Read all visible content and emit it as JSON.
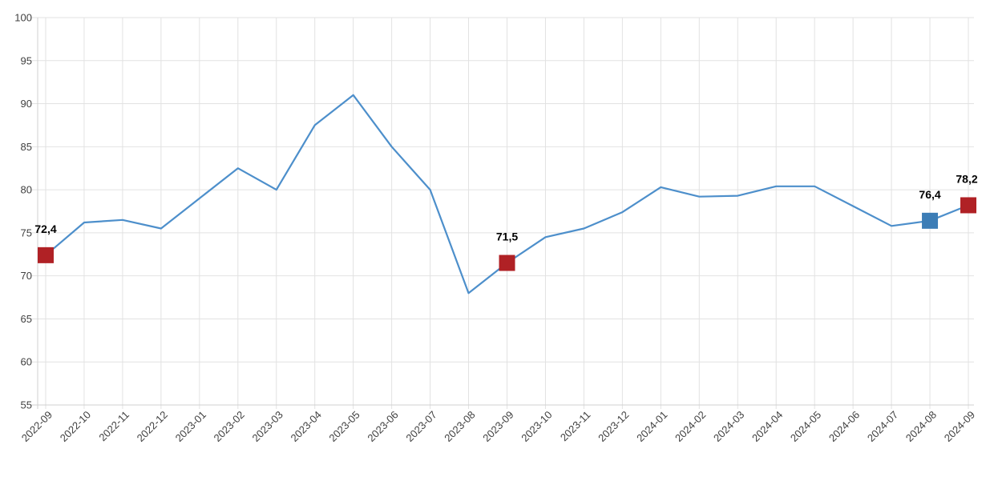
{
  "chart_data": {
    "type": "line",
    "title": "",
    "xlabel": "",
    "ylabel": "",
    "ylim": [
      55,
      100
    ],
    "ytick_step": 5,
    "ytick_labels": [
      "55",
      "60",
      "65",
      "70",
      "75",
      "80",
      "85",
      "90",
      "95",
      "100"
    ],
    "grid": true,
    "legend": "none",
    "decimal_separator": ",",
    "categories": [
      "2022-09",
      "2022-10",
      "2022-11",
      "2022-12",
      "2023-01",
      "2023-02",
      "2023-03",
      "2023-04",
      "2023-05",
      "2023-06",
      "2023-07",
      "2023-08",
      "2023-09",
      "2023-10",
      "2023-11",
      "2023-12",
      "2024-01",
      "2024-02",
      "2024-03",
      "2024-04",
      "2024-05",
      "2024-06",
      "2024-07",
      "2024-08",
      "2024-09"
    ],
    "values": [
      72.4,
      76.2,
      76.5,
      75.5,
      79.0,
      82.5,
      80.0,
      87.5,
      91.0,
      85.0,
      80.0,
      68.0,
      71.5,
      74.5,
      75.5,
      77.4,
      80.3,
      79.2,
      79.3,
      80.4,
      80.4,
      78.1,
      75.8,
      76.4,
      78.2
    ],
    "line_color": "#4d8fcb",
    "grid_color": "#e2e2e2",
    "axis_line_color": "#d0d0d0",
    "tick_label_color": "#404040",
    "value_label_color": "#000000",
    "marked_points": [
      {
        "index": 0,
        "category": "2022-09",
        "value": 72.4,
        "label": "72,4",
        "color": "#b02125",
        "shape": "square"
      },
      {
        "index": 12,
        "category": "2023-09",
        "value": 71.5,
        "label": "71,5",
        "color": "#b02125",
        "shape": "square"
      },
      {
        "index": 23,
        "category": "2024-08",
        "value": 76.4,
        "label": "76,4",
        "color": "#3c7db6",
        "shape": "square"
      },
      {
        "index": 24,
        "category": "2024-09",
        "value": 78.2,
        "label": "78,2",
        "color": "#b02125",
        "shape": "square"
      }
    ]
  }
}
